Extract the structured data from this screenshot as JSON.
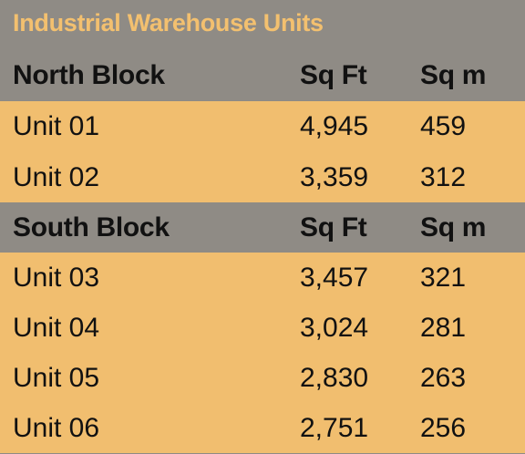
{
  "title": "Industrial Warehouse Units",
  "colors": {
    "header_bg": "#8f8b85",
    "row_bg": "#f1be6f",
    "title_text": "#f3c06f",
    "body_text": "#111111"
  },
  "blocks": [
    {
      "name": "North Block",
      "col_sqft": "Sq Ft",
      "col_sqm": "Sq m",
      "units": [
        {
          "unit": "Unit 01",
          "sqft": "4,945",
          "sqm": "459"
        },
        {
          "unit": "Unit 02",
          "sqft": "3,359",
          "sqm": "312"
        }
      ]
    },
    {
      "name": "South Block",
      "col_sqft": "Sq Ft",
      "col_sqm": "Sq m",
      "units": [
        {
          "unit": "Unit 03",
          "sqft": "3,457",
          "sqm": "321"
        },
        {
          "unit": "Unit 04",
          "sqft": "3,024",
          "sqm": "281"
        },
        {
          "unit": "Unit 05",
          "sqft": "2,830",
          "sqm": "263"
        },
        {
          "unit": "Unit 06",
          "sqft": "2,751",
          "sqm": "256"
        }
      ]
    }
  ]
}
